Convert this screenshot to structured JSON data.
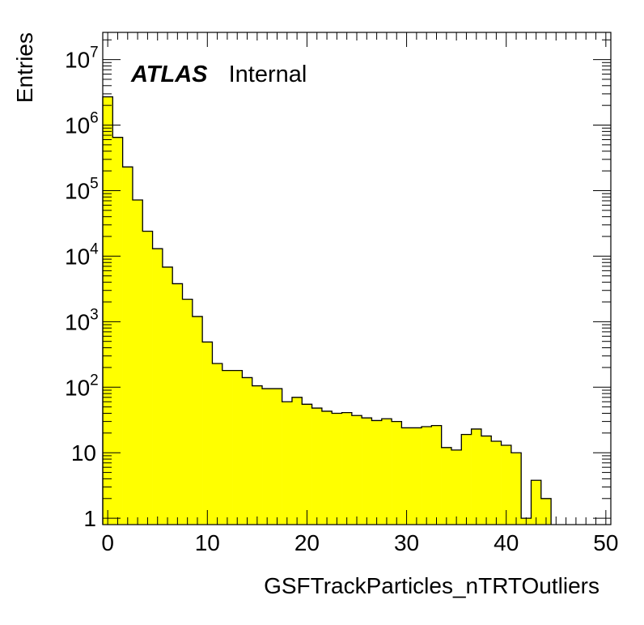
{
  "chart_data": {
    "type": "bar",
    "style": "histogram",
    "label_bold": "ATLAS",
    "label_status": "Internal",
    "xlabel": "GSFTrackParticles_nTRTOutliers",
    "ylabel": "Entries",
    "x_range": [
      -0.5,
      50.5
    ],
    "y_range": [
      0.8,
      26000000
    ],
    "y_scale": "log",
    "bin_width": 1,
    "x_ticks": [
      "0",
      "10",
      "20",
      "30",
      "40",
      "50"
    ],
    "y_ticks": [
      {
        "mantissa": "1",
        "exp": ""
      },
      {
        "mantissa": "10",
        "exp": ""
      },
      {
        "mantissa": "10",
        "exp": "2"
      },
      {
        "mantissa": "10",
        "exp": "3"
      },
      {
        "mantissa": "10",
        "exp": "4"
      },
      {
        "mantissa": "10",
        "exp": "5"
      },
      {
        "mantissa": "10",
        "exp": "6"
      },
      {
        "mantissa": "10",
        "exp": "7"
      }
    ],
    "fill_color": "#ffff00",
    "line_color": "#000000",
    "bins": [
      -0.5,
      0.5,
      1.5,
      2.5,
      3.5,
      4.5,
      5.5,
      6.5,
      7.5,
      8.5,
      9.5,
      10.5,
      11.5,
      12.5,
      13.5,
      14.5,
      15.5,
      16.5,
      17.5,
      18.5,
      19.5,
      20.5,
      21.5,
      22.5,
      23.5,
      24.5,
      25.5,
      26.5,
      27.5,
      28.5,
      29.5,
      30.5,
      31.5,
      32.5,
      33.5,
      34.5,
      35.5,
      36.5,
      37.5,
      38.5,
      39.5,
      40.5,
      41.5,
      42.5,
      43.5
    ],
    "values": [
      2700000,
      650000,
      230000,
      72000,
      24000,
      13000,
      6800,
      3800,
      2200,
      1200,
      490,
      230,
      180,
      180,
      140,
      105,
      95,
      95,
      60,
      70,
      55,
      48,
      43,
      40,
      41,
      37,
      34,
      31,
      33,
      30,
      24,
      24,
      25,
      26,
      12,
      11,
      19,
      23,
      18,
      15,
      13,
      10,
      1,
      3.8,
      2
    ]
  }
}
